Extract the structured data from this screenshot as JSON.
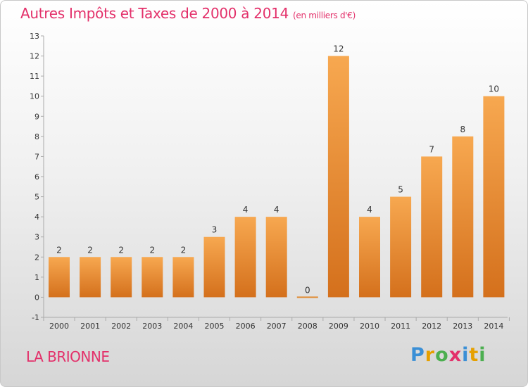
{
  "header": {
    "title": "Autres Impôts et Taxes de 2000 à 2014",
    "unit": "(en milliers d'€)"
  },
  "footer": {
    "commune": "LA BRIONNE",
    "logo_text": "Proxiti",
    "logo_colors": [
      "#3a8fd6",
      "#e6a000",
      "#4caf50",
      "#e3306a",
      "#3a8fd6",
      "#e6a000",
      "#4caf50"
    ]
  },
  "colors": {
    "bar_light": "#f7a850",
    "bar_dark": "#d4701c",
    "text": "#e3306a"
  },
  "chart_data": {
    "type": "bar",
    "title": "Autres Impôts et Taxes de 2000 à 2014",
    "categories": [
      "2000",
      "2001",
      "2002",
      "2003",
      "2004",
      "2005",
      "2006",
      "2007",
      "2008",
      "2009",
      "2010",
      "2011",
      "2012",
      "2013",
      "2014"
    ],
    "values": [
      2,
      2,
      2,
      2,
      2,
      3,
      4,
      4,
      0,
      12,
      4,
      5,
      7,
      8,
      10
    ],
    "ylim": [
      -1,
      13
    ],
    "yticks": [
      -1,
      0,
      1,
      2,
      3,
      4,
      5,
      6,
      7,
      8,
      9,
      10,
      11,
      12,
      13
    ],
    "grid": false,
    "xlabel": "",
    "ylabel": ""
  }
}
